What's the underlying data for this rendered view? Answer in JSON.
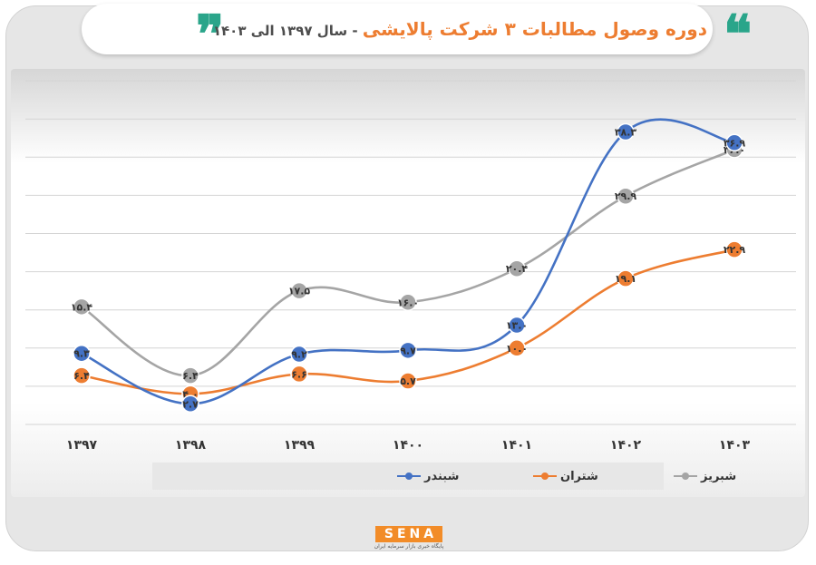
{
  "title": {
    "main": "دوره وصول مطالبات ۳ شرکت پالایشی",
    "sub": "- سال ۱۳۹۷ الی ۱۴۰۳"
  },
  "quote_glyph": "❝",
  "quote_glyph_close": "❞",
  "logo": {
    "text": "SENA",
    "subtitle": "پایگاه خبری بازار سرمایه ایران"
  },
  "colors": {
    "shabandar": "#4472c4",
    "shetran": "#ed7d31",
    "shabriz": "#a5a5a5",
    "accent": "#2aa58a"
  },
  "chart_data": {
    "type": "line",
    "categories": [
      "۱۳۹۷",
      "۱۳۹۸",
      "۱۳۹۹",
      "۱۴۰۰",
      "۱۴۰۱",
      "۱۴۰۲",
      "۱۴۰۳"
    ],
    "series": [
      {
        "name": "شبندر",
        "color": "#4472c4",
        "values": [
          9.3,
          2.7,
          9.2,
          9.7,
          13.0,
          38.3,
          36.9
        ],
        "labels": [
          "۹.۳",
          "۲.۷",
          "۹.۲",
          "۹.۷",
          "۱۳.۰",
          "۳۸.۳",
          "۳۶.۹"
        ]
      },
      {
        "name": "شتران",
        "color": "#ed7d31",
        "values": [
          6.4,
          4.0,
          6.6,
          5.7,
          10.0,
          19.1,
          22.9
        ],
        "labels": [
          "۶.۴",
          "۴.۰",
          "۶.۶",
          "۵.۷",
          "۱۰.۰",
          "۱۹.۱",
          "۲۲.۹"
        ]
      },
      {
        "name": "شبریز",
        "color": "#a5a5a5",
        "values": [
          15.4,
          6.4,
          17.5,
          16.0,
          20.4,
          29.9,
          36.0
        ],
        "labels": [
          "۱۵.۴",
          "۶.۴",
          "۱۷.۵",
          "۱۶.۰",
          "۲۰.۴",
          "۲۹.۹",
          "۳۶.۰"
        ]
      }
    ],
    "ylim": [
      0,
      45
    ],
    "grid": true,
    "legend_position": "bottom"
  }
}
